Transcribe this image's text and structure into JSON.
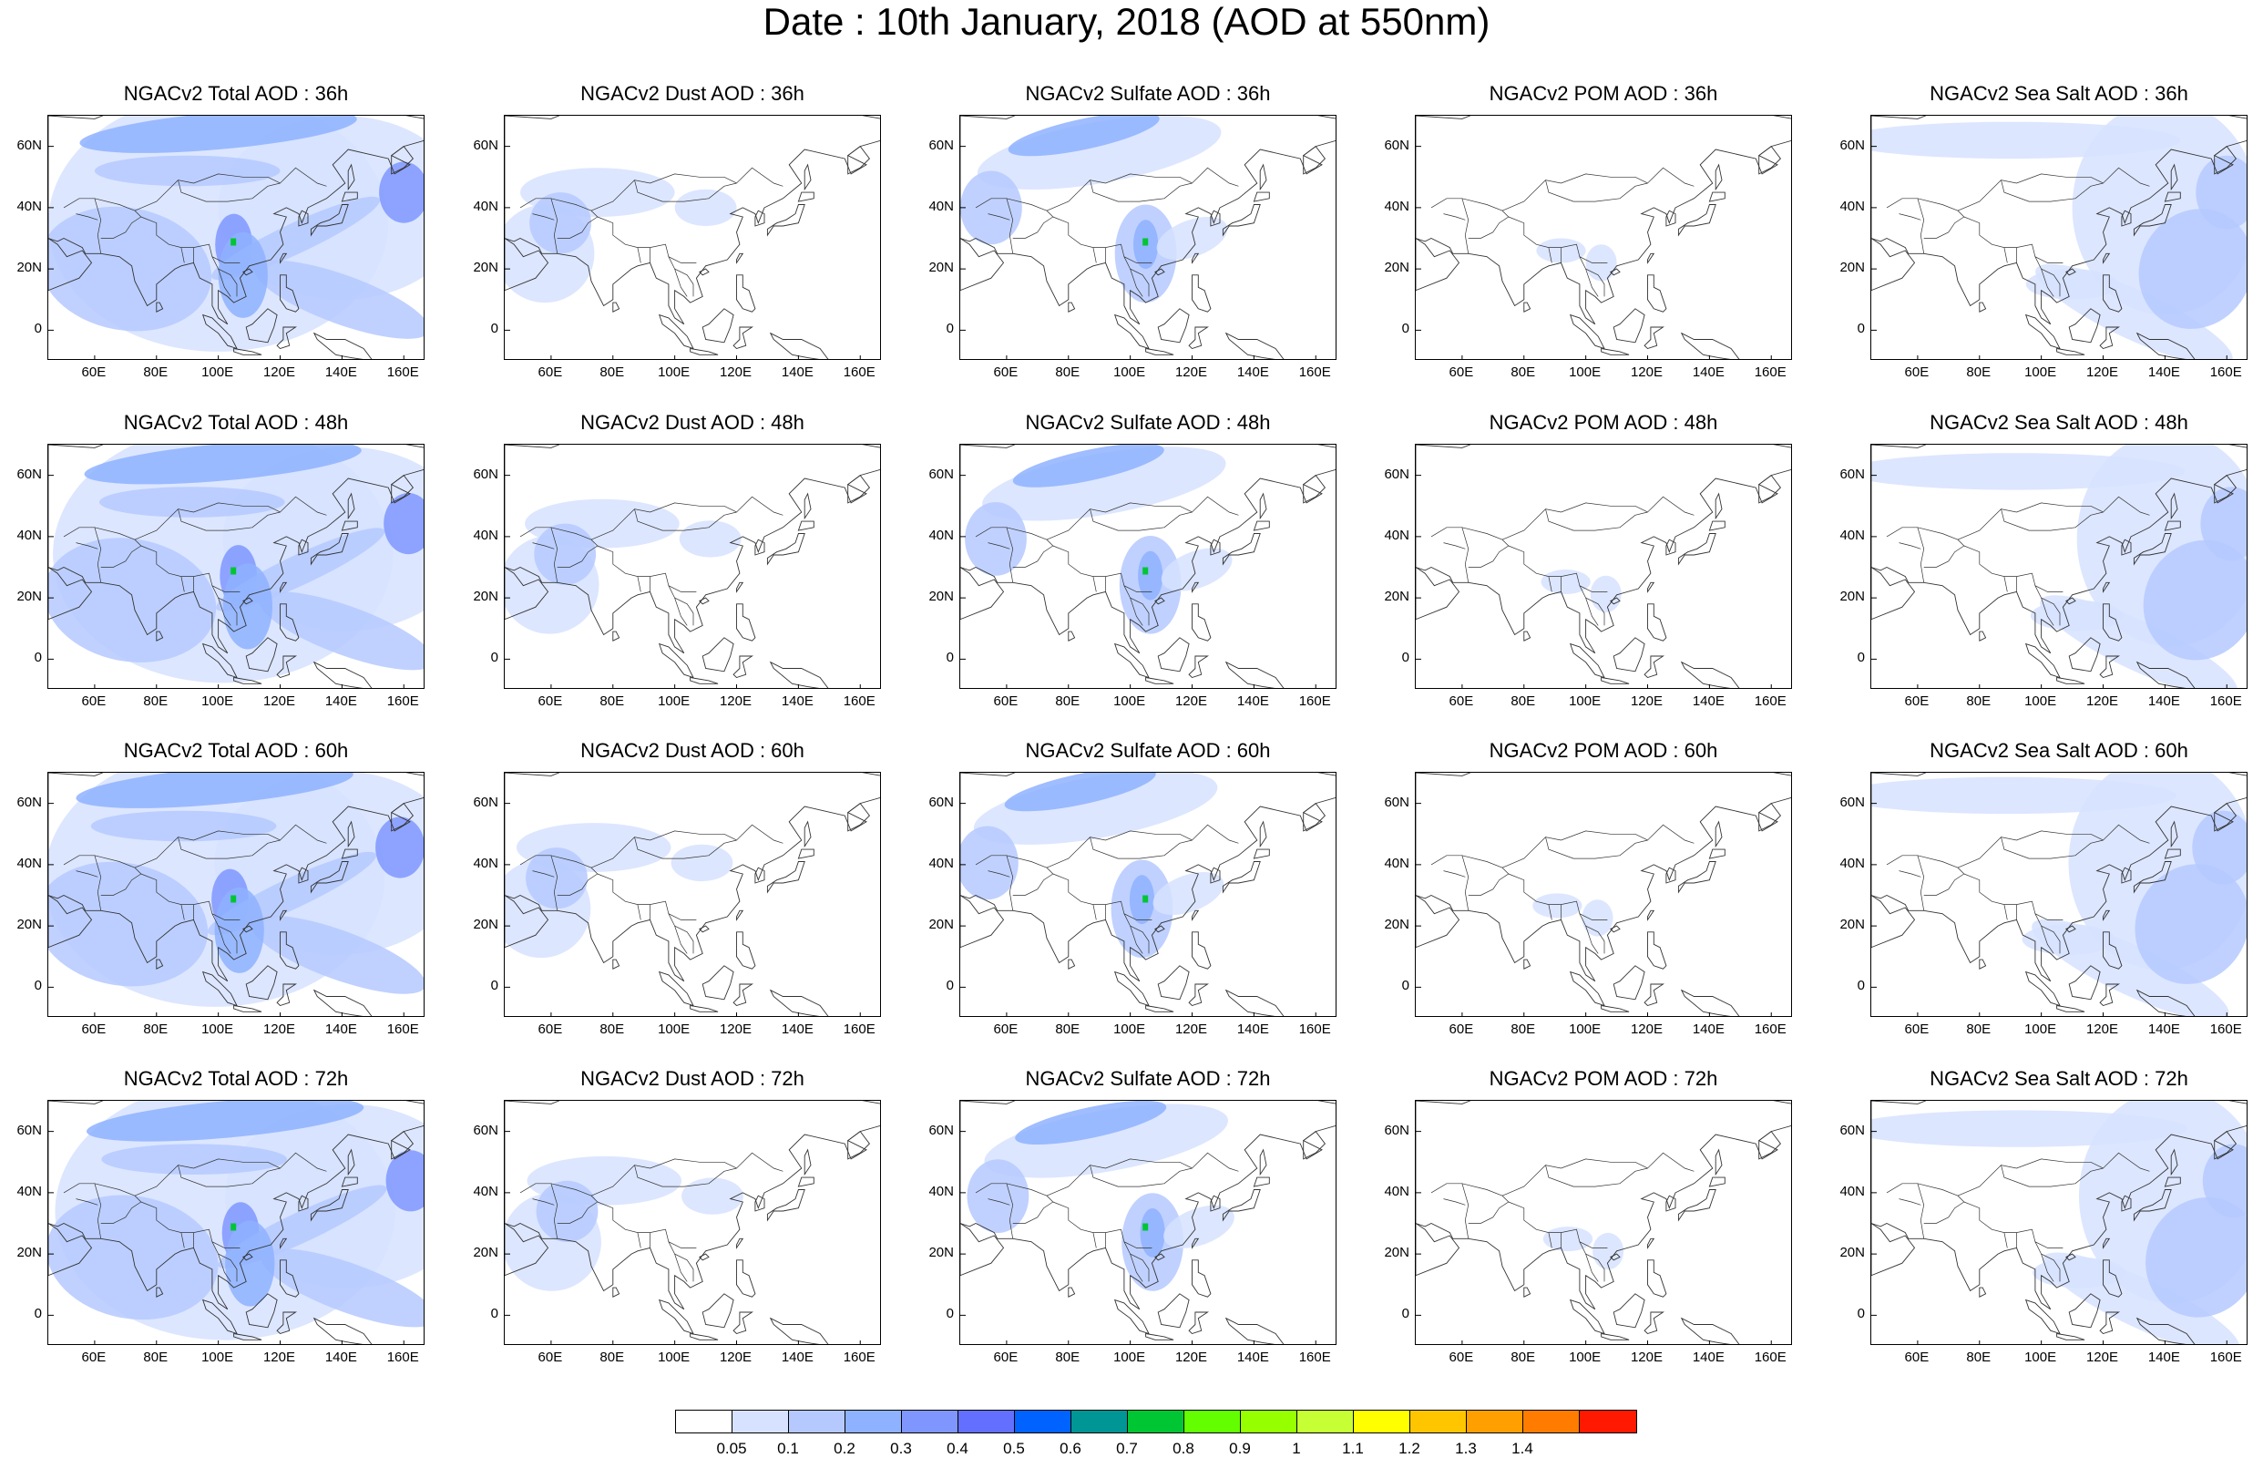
{
  "title": "Date : 10th January, 2018 (AOD at 550nm)",
  "map_axes": {
    "lat_labels": [
      "60N",
      "40N",
      "20N",
      "0"
    ],
    "lon_labels": [
      "60E",
      "80E",
      "100E",
      "120E",
      "140E",
      "160E"
    ]
  },
  "panels": [
    {
      "title": "NGACv2 Total AOD : 36h",
      "species": "total"
    },
    {
      "title": "NGACv2 Dust AOD : 36h",
      "species": "dust"
    },
    {
      "title": "NGACv2 Sulfate AOD : 36h",
      "species": "sulfate"
    },
    {
      "title": "NGACv2 POM AOD : 36h",
      "species": "pom"
    },
    {
      "title": "NGACv2 Sea Salt AOD : 36h",
      "species": "seasalt"
    },
    {
      "title": "NGACv2 Total AOD : 48h",
      "species": "total"
    },
    {
      "title": "NGACv2 Dust AOD : 48h",
      "species": "dust"
    },
    {
      "title": "NGACv2 Sulfate AOD : 48h",
      "species": "sulfate"
    },
    {
      "title": "NGACv2 POM AOD : 48h",
      "species": "pom"
    },
    {
      "title": "NGACv2 Sea Salt AOD : 48h",
      "species": "seasalt"
    },
    {
      "title": "NGACv2 Total AOD : 60h",
      "species": "total"
    },
    {
      "title": "NGACv2 Dust AOD : 60h",
      "species": "dust"
    },
    {
      "title": "NGACv2 Sulfate AOD : 60h",
      "species": "sulfate"
    },
    {
      "title": "NGACv2 POM AOD : 60h",
      "species": "pom"
    },
    {
      "title": "NGACv2 Sea Salt AOD : 60h",
      "species": "seasalt"
    },
    {
      "title": "NGACv2 Total AOD : 72h",
      "species": "total"
    },
    {
      "title": "NGACv2 Dust AOD : 72h",
      "species": "dust"
    },
    {
      "title": "NGACv2 Sulfate AOD : 72h",
      "species": "sulfate"
    },
    {
      "title": "NGACv2 POM AOD : 72h",
      "species": "pom"
    },
    {
      "title": "NGACv2 Sea Salt  AOD : 72h",
      "species": "seasalt"
    }
  ],
  "colorbar": {
    "labels": [
      "0.05",
      "0.1",
      "0.2",
      "0.3",
      "0.4",
      "0.5",
      "0.6",
      "0.7",
      "0.8",
      "0.9",
      "1",
      "1.1",
      "1.2",
      "1.3",
      "1.4"
    ],
    "colors": [
      "#ffffff",
      "#d6e2ff",
      "#b5c9ff",
      "#8eb2ff",
      "#7f96ff",
      "#6370ff",
      "#0063ff",
      "#009696",
      "#00c633",
      "#63ff00",
      "#96ff00",
      "#c6ff33",
      "#ffff00",
      "#ffc600",
      "#ffa000",
      "#ff7c00",
      "#ff1900"
    ]
  },
  "colors": {
    "land_outline": "#333333",
    "aod_light": "#d6e2ff",
    "aod_mid": "#b5c9ff",
    "aod_strong": "#8eb2ff",
    "aod_max": "#7f96ff",
    "hotspot": "#00c633"
  }
}
